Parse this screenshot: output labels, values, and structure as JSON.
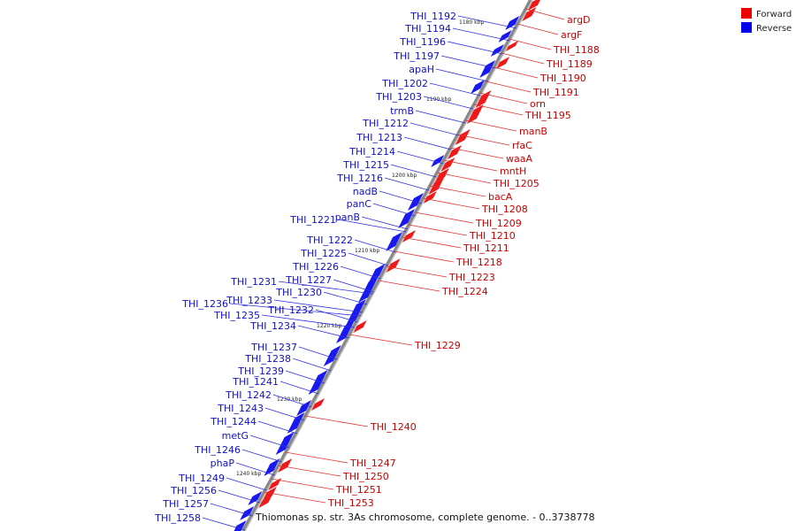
{
  "caption": "Thiomonas sp. str. 3As chromosome, complete genome. - 0..3738778",
  "legend": [
    {
      "label": "Forward",
      "color": "#ee0000"
    },
    {
      "label": "Reverse",
      "color": "#0000ee"
    }
  ],
  "ticks": [
    "1180 kbp",
    "1190 kbp",
    "1200 kbp",
    "1210 kbp",
    "1220 kbp",
    "1230 kbp",
    "1240 kbp"
  ],
  "reverse_genes": [
    "THI_1192",
    "THI_1194",
    "THI_1196",
    "THI_1197",
    "apaH",
    "THI_1202",
    "THI_1203",
    "trmB",
    "THI_1212",
    "THI_1213",
    "THI_1214",
    "THI_1215",
    "THI_1216",
    "nadB",
    "panC",
    "panB",
    "THI_1221",
    "THI_1222",
    "THI_1225",
    "THI_1226",
    "THI_1227",
    "THI_1231",
    "THI_1230",
    "THI_1233",
    "THI_1236",
    "THI_1232",
    "THI_1235",
    "THI_1234",
    "THI_1237",
    "THI_1238",
    "THI_1239",
    "THI_1241",
    "THI_1242",
    "THI_1243",
    "THI_1244",
    "metG",
    "THI_1246",
    "phaP",
    "THI_1249",
    "THI_1256",
    "THI_1257",
    "THI_1258"
  ],
  "forward_genes": [
    "argD",
    "argF",
    "THI_1188",
    "THI_1189",
    "THI_1190",
    "THI_1191",
    "orn",
    "THI_1195",
    "manB",
    "rfaC",
    "waaA",
    "mntH",
    "THI_1205",
    "bacA",
    "THI_1208",
    "THI_1209",
    "THI_1210",
    "THI_1211",
    "THI_1218",
    "THI_1223",
    "THI_1224",
    "THI_1229",
    "THI_1240",
    "THI_1247",
    "THI_1250",
    "THI_1251",
    "THI_1253"
  ]
}
